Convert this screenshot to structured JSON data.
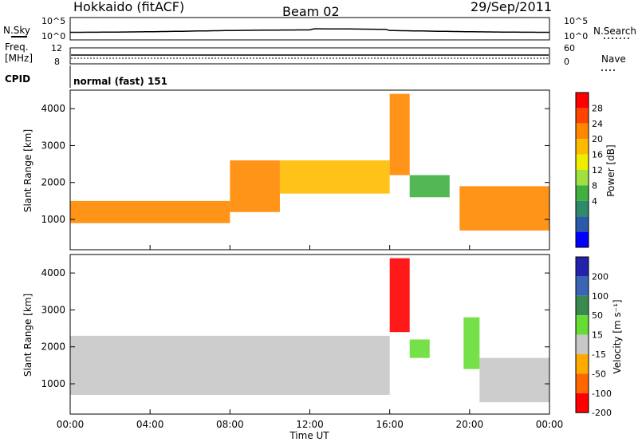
{
  "header": {
    "station": "Hokkaido (fitACF)",
    "beam": "Beam 02",
    "date": "29/Sep/2011"
  },
  "top_panels": {
    "nsky_label": "N.Sky",
    "nsky_ticks": [
      "10^5",
      "10^0"
    ],
    "nsearch_label": "N.Search",
    "freq_label_1": "Freq.",
    "freq_label_2": "[MHz]",
    "freq_ticks": [
      "12",
      "8"
    ],
    "nave_ticks": [
      "60",
      "0"
    ],
    "nave_label": "Nave",
    "cpid_label": "CPID",
    "cpid_text": "normal (fast) 151"
  },
  "x_axis": {
    "ticks": [
      "00:00",
      "04:00",
      "08:00",
      "12:00",
      "16:00",
      "20:00",
      "00:00"
    ],
    "label": "Time UT"
  },
  "power_panel": {
    "ylabel": "Slant Range [km]",
    "yticks": [
      "4000",
      "3000",
      "2000",
      "1000"
    ],
    "colorbar_label": "Power [dB]",
    "colorbar_ticks": [
      "28",
      "24",
      "20",
      "16",
      "12",
      "8",
      "4"
    ],
    "colors": [
      "#ff0000",
      "#ff4400",
      "#ff8800",
      "#ffbb00",
      "#eeee00",
      "#a0e040",
      "#40b040",
      "#2e8a6a",
      "#2a5aa8",
      "#0000ff"
    ]
  },
  "velocity_panel": {
    "ylabel": "Slant Range [km]",
    "yticks": [
      "4000",
      "3000",
      "2000",
      "1000"
    ],
    "colorbar_label": "Velocity [m s⁻¹]",
    "colorbar_ticks": [
      "200",
      "100",
      "50",
      "15",
      "-15",
      "-50",
      "-100",
      "-200"
    ],
    "colors": [
      "#2222aa",
      "#3a64b4",
      "#3a8a50",
      "#66dd33",
      "#c8c8c8",
      "#ffaa00",
      "#ff6600",
      "#ff0000"
    ]
  },
  "chart_data": [
    {
      "type": "heatmap",
      "title": "Power",
      "xlabel": "Time UT",
      "ylabel": "Slant Range [km]",
      "x_range": [
        "00:00",
        "24:00"
      ],
      "ylim": [
        180,
        4500
      ],
      "colorbar": {
        "label": "Power [dB]",
        "range": [
          0,
          32
        ],
        "ticks": [
          4,
          8,
          12,
          16,
          20,
          24,
          28
        ]
      },
      "bands": [
        {
          "t": [
            0,
            8
          ],
          "range_km": [
            900,
            1500
          ],
          "power_db": 26
        },
        {
          "t": [
            8,
            10.5
          ],
          "range_km": [
            1200,
            2600
          ],
          "power_db": 26
        },
        {
          "t": [
            10.5,
            16
          ],
          "range_km": [
            1700,
            2600
          ],
          "power_db": 22
        },
        {
          "t": [
            16,
            17
          ],
          "range_km": [
            2200,
            4400
          ],
          "power_db": 24
        },
        {
          "t": [
            17,
            19
          ],
          "range_km": [
            1600,
            2200
          ],
          "power_db": 10
        },
        {
          "t": [
            19.5,
            24
          ],
          "range_km": [
            700,
            1900
          ],
          "power_db": 26
        }
      ]
    },
    {
      "type": "heatmap",
      "title": "Velocity",
      "xlabel": "Time UT",
      "ylabel": "Slant Range [km]",
      "x_range": [
        "00:00",
        "24:00"
      ],
      "ylim": [
        180,
        4500
      ],
      "colorbar": {
        "label": "Velocity [m s⁻¹]",
        "range": [
          -250,
          250
        ],
        "ticks": [
          -200,
          -100,
          -50,
          -15,
          15,
          50,
          100,
          200
        ]
      },
      "bands": [
        {
          "t": [
            0,
            16
          ],
          "range_km": [
            700,
            2300
          ],
          "velocity": 0
        },
        {
          "t": [
            16,
            17
          ],
          "range_km": [
            2400,
            4400
          ],
          "velocity": -200
        },
        {
          "t": [
            17,
            18
          ],
          "range_km": [
            1700,
            2200
          ],
          "velocity": 40
        },
        {
          "t": [
            19.7,
            20.5
          ],
          "range_km": [
            1400,
            2800
          ],
          "velocity": 40
        },
        {
          "t": [
            20.5,
            24
          ],
          "range_km": [
            500,
            1700
          ],
          "velocity": 0
        }
      ]
    }
  ]
}
